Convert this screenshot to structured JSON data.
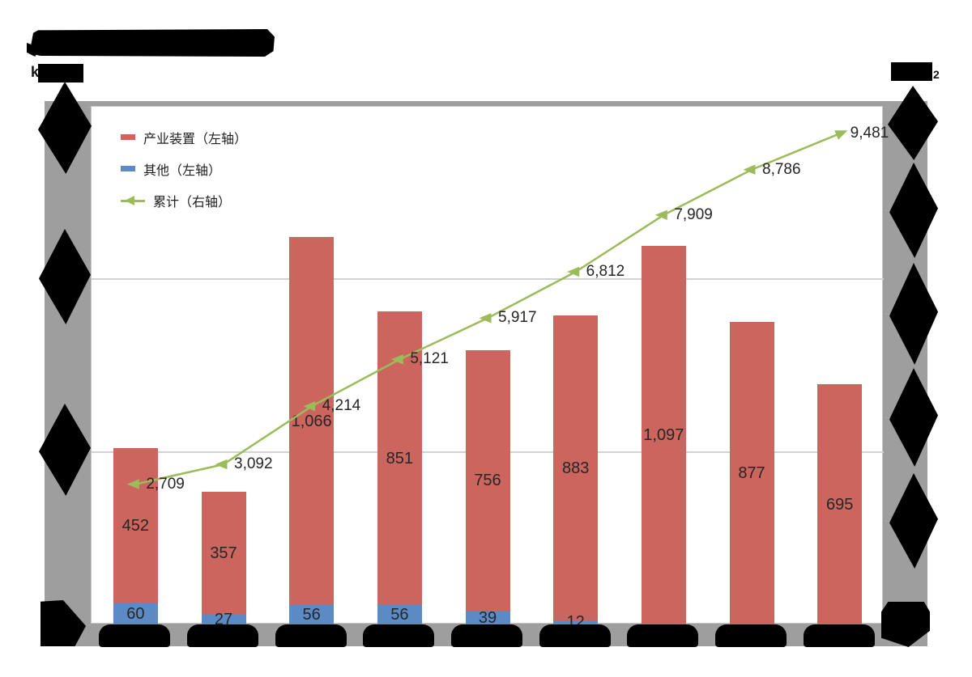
{
  "header": {
    "title_text": "",
    "title_redacted": true,
    "unit_left_prefix": "k",
    "unit_left_redacted": true,
    "unit_right_redacted": true,
    "unit_right_suffix": "2"
  },
  "legend": {
    "items": [
      {
        "id": "industrial",
        "label": "产业装置（左轴）",
        "marker": "bar-swatch",
        "color": "#CB655E"
      },
      {
        "id": "other",
        "label": "其他（左轴）",
        "marker": "bar-swatch",
        "color": "#5B8AC5"
      },
      {
        "id": "cumulative",
        "label": "累计（右轴）",
        "marker": "line-arrow",
        "color": "#9CBB5A"
      }
    ]
  },
  "chart_data": {
    "type": "bar",
    "subtype": "stacked-bars-with-cumulative-line-combo",
    "categories": [
      "",
      "",
      "",
      "",
      "",
      "",
      "",
      "",
      ""
    ],
    "categories_redacted": true,
    "series": [
      {
        "name": "产业装置（左轴）",
        "id": "industrial",
        "type": "bar",
        "axis": "left",
        "color": "#CB655E",
        "values": [
          452,
          357,
          1066,
          851,
          756,
          883,
          1097,
          877,
          695
        ]
      },
      {
        "name": "其他（左轴）",
        "id": "other",
        "type": "bar",
        "axis": "left",
        "color": "#5B8AC5",
        "values": [
          60,
          27,
          56,
          56,
          39,
          12,
          0,
          0,
          0
        ]
      },
      {
        "name": "累计（右轴）",
        "id": "cumulative",
        "type": "line",
        "axis": "right",
        "color": "#9CBB5A",
        "values": [
          2709,
          3092,
          4214,
          5121,
          5917,
          6812,
          7909,
          8786,
          9481
        ]
      }
    ],
    "left_axis": {
      "min": 0,
      "max": 1500,
      "tick_interval": 500,
      "labels_redacted": true
    },
    "right_axis": {
      "min": 0,
      "max": 10000,
      "tick_interval": 2000,
      "labels_redacted": true
    },
    "gridlines": [
      500,
      1000
    ],
    "grid": true,
    "legend_position": "top-left-inside",
    "data_labels": true
  },
  "colors": {
    "bar_red": "#CB655E",
    "bar_blue": "#5B8AC5",
    "line_green": "#9CBB5A",
    "chart_margin_gray": "#9E9E9E",
    "plot_background": "#FFFFFF",
    "gridline": "#D2D2D2",
    "text": "#1F1F1F",
    "redaction": "#000000"
  }
}
